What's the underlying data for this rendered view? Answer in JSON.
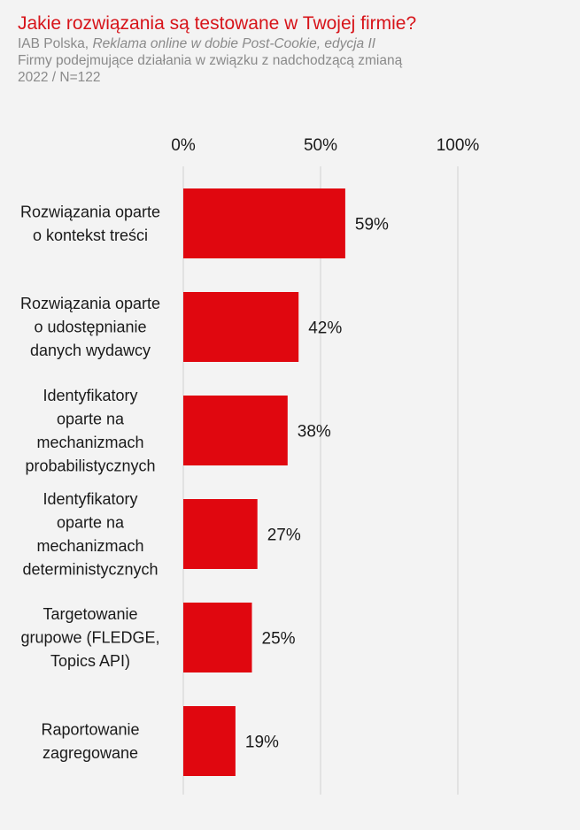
{
  "header": {
    "title": "Jakie rozwiązania są testowane w Twojej firmie?",
    "source_org": "IAB Polska, ",
    "source_pub": "Reklama online w dobie Post-Cookie, edycja II",
    "line2": "Firmy podejmujące działania w związku z nadchodzącą zmianą",
    "line3": "2022 / N=122"
  },
  "chart_data": {
    "type": "bar",
    "orientation": "horizontal",
    "categories": [
      [
        "Rozwiązania oparte",
        "o kontekst treści"
      ],
      [
        "Rozwiązania oparte",
        "o udostępnianie",
        "danych wydawcy"
      ],
      [
        "Identyfikatory",
        "oparte na",
        "mechanizmach",
        "probabilistycznych"
      ],
      [
        "Identyfikatory",
        "oparte na",
        "mechanizmach",
        "deterministycznych"
      ],
      [
        "Targetowanie",
        "grupowe (FLEDGE,",
        "Topics API)"
      ],
      [
        "Raportowanie",
        "zagregowane"
      ]
    ],
    "values": [
      59,
      42,
      38,
      27,
      25,
      19
    ],
    "value_labels": [
      "59%",
      "42%",
      "38%",
      "27%",
      "25%",
      "19%"
    ],
    "xlim": [
      0,
      100
    ],
    "ticks": [
      0,
      50,
      100
    ],
    "tick_labels": [
      "0%",
      "50%",
      "100%"
    ],
    "grid": true,
    "bar_color": "#e0070f",
    "grid_color": "#d0d0d0"
  }
}
